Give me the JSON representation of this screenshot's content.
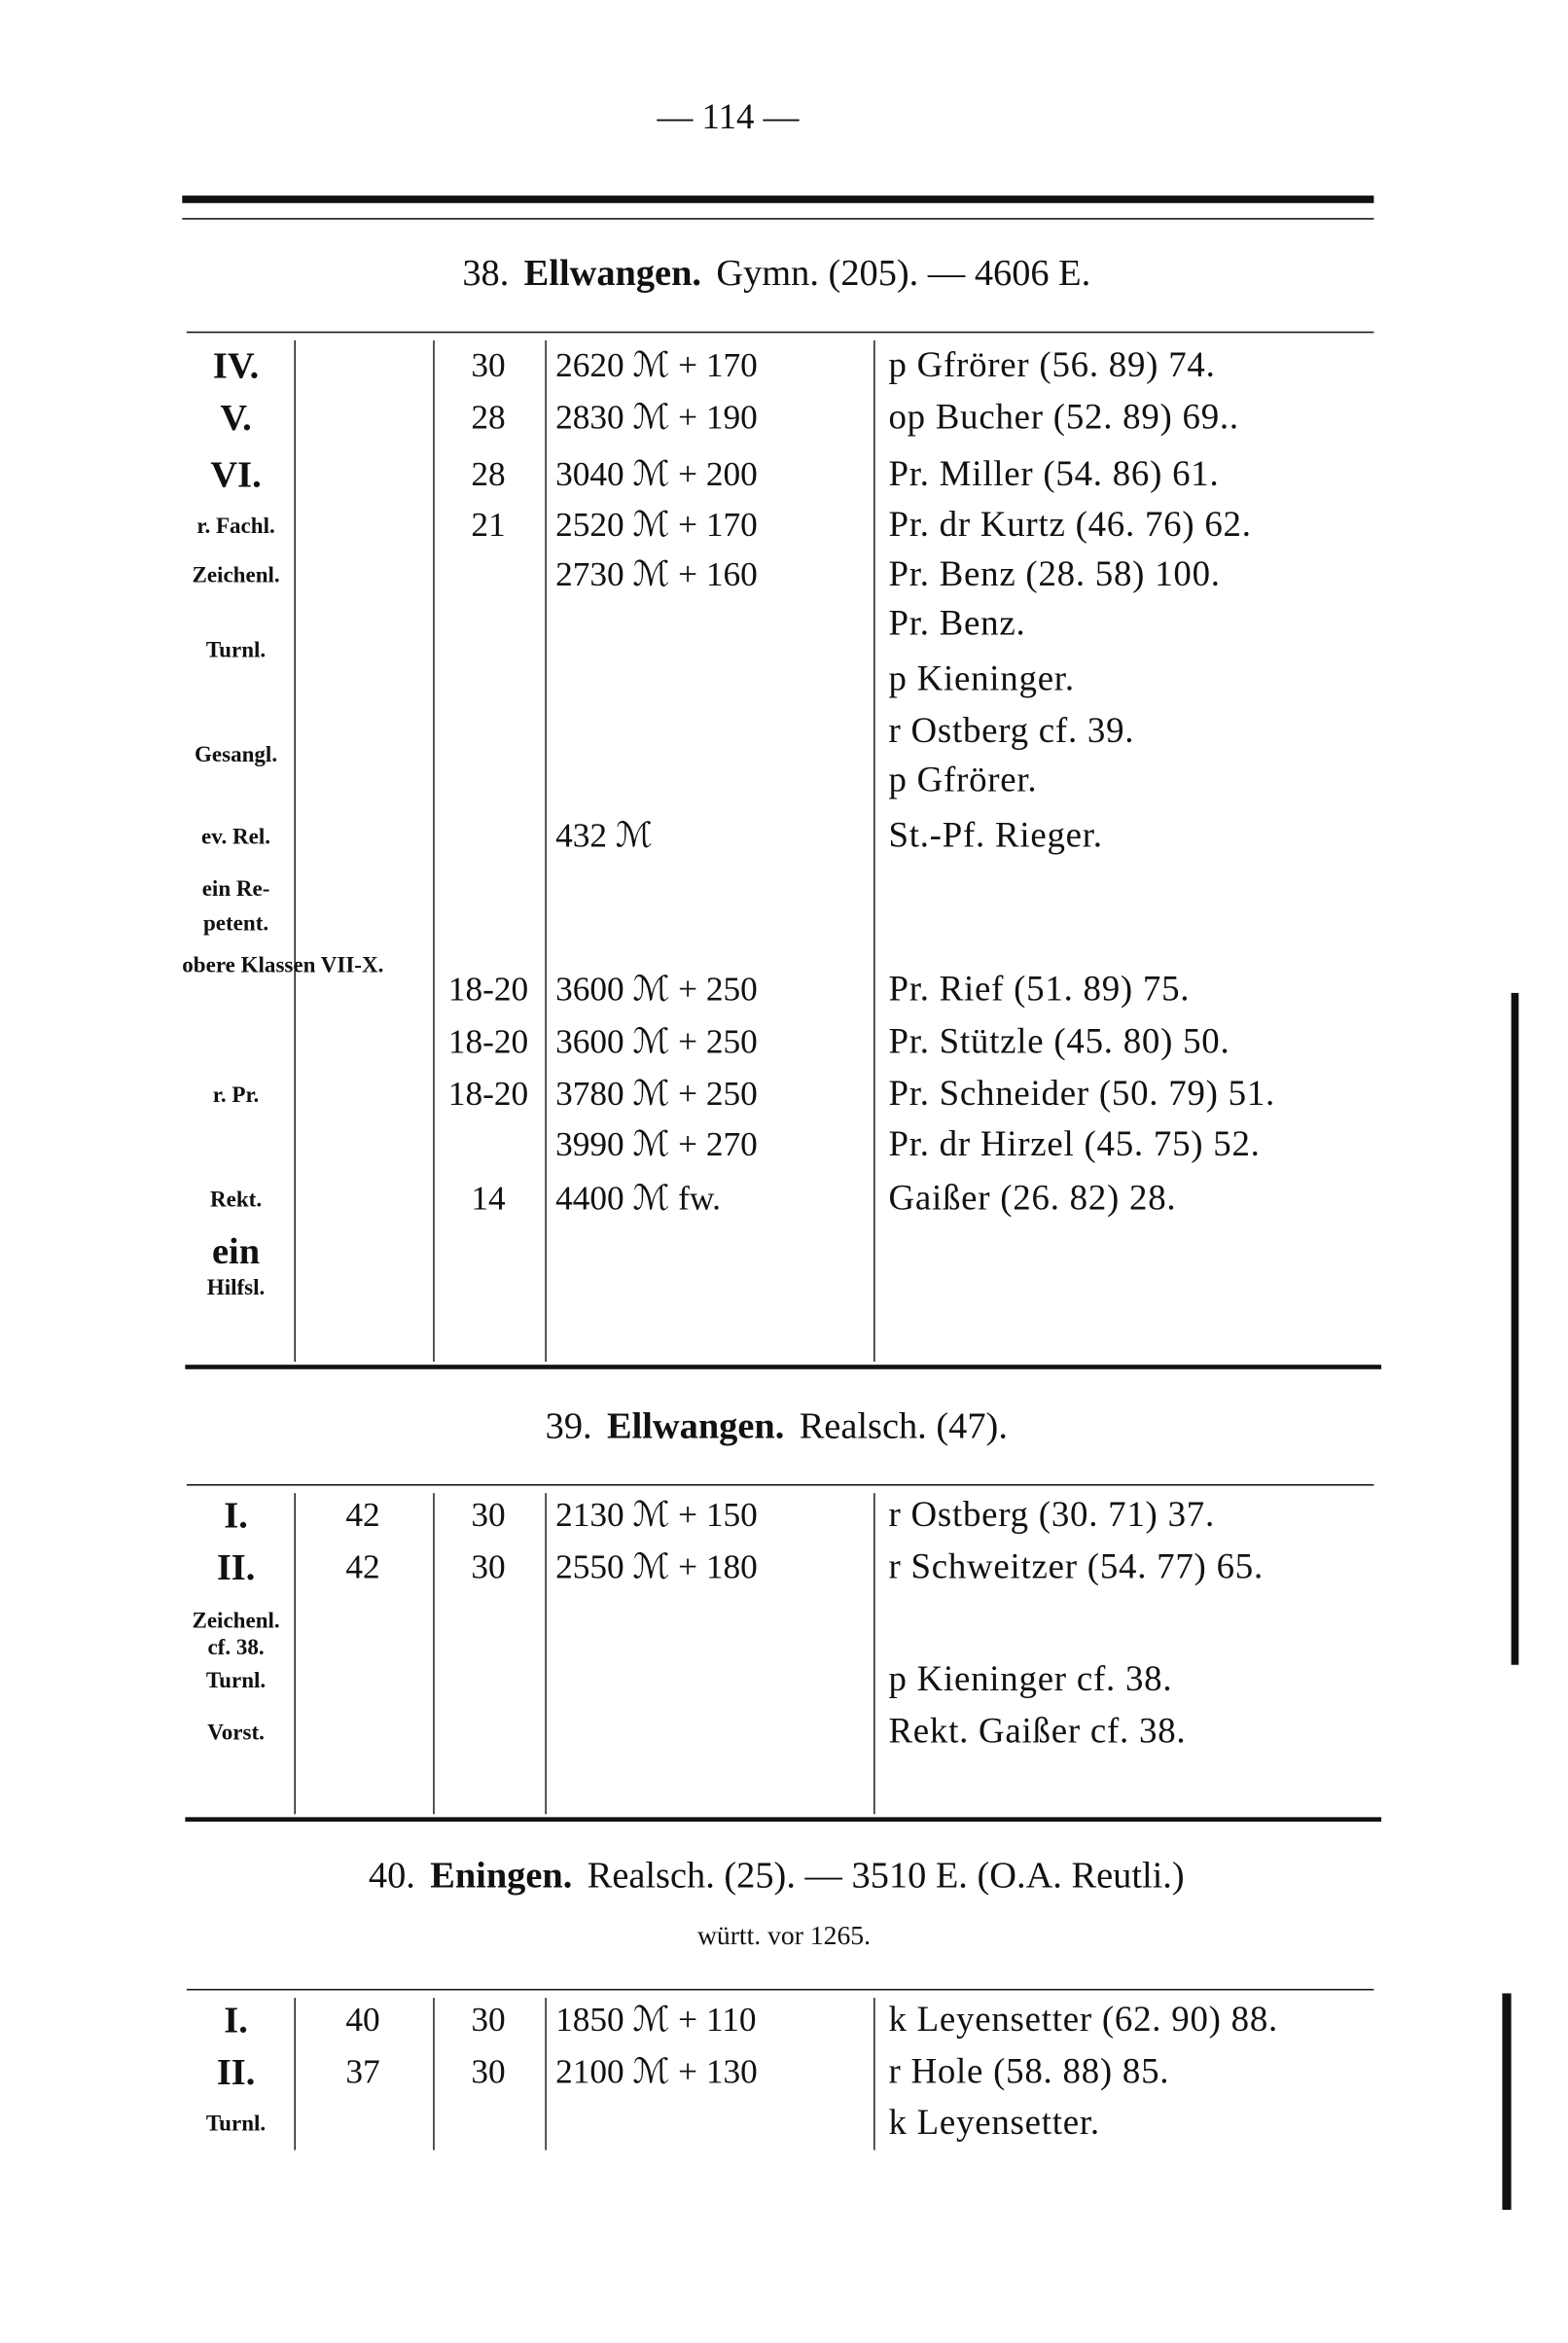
{
  "page_number": "— 114 —",
  "sections": [
    {
      "number": "38.",
      "town": "Ellwangen.",
      "rest": "Gymn. (205). — 4606 E.",
      "subtitle": "",
      "rows": [
        {
          "label": "IV.",
          "n1": "",
          "n2": "30",
          "salary": "2620 ℳ + 170",
          "name": "p Gfrörer (56. 89) 74."
        },
        {
          "label": "V.",
          "n1": "",
          "n2": "28",
          "salary": "2830 ℳ + 190",
          "name": "op Bucher (52. 89) 69.."
        },
        {
          "label": "VI.",
          "n1": "",
          "n2": "28",
          "salary": "3040 ℳ + 200",
          "name": "Pr. Miller (54. 86) 61."
        },
        {
          "label": "r. Fachl.",
          "n1": "",
          "n2": "21",
          "salary": "2520 ℳ + 170",
          "name": "Pr. dr Kurtz (46. 76) 62."
        },
        {
          "label": "Zeichenl.",
          "n1": "",
          "n2": "",
          "salary": "2730 ℳ + 160",
          "name": "Pr. Benz (28. 58) 100."
        },
        {
          "label": "",
          "n1": "",
          "n2": "",
          "salary": "",
          "name": "Pr. Benz."
        },
        {
          "label": "Turnl.",
          "n1": "",
          "n2": "",
          "salary": "",
          "name": ""
        },
        {
          "label": "",
          "n1": "",
          "n2": "",
          "salary": "",
          "name": "p Kieninger."
        },
        {
          "label": "",
          "n1": "",
          "n2": "",
          "salary": "",
          "name": "r Ostberg cf. 39."
        },
        {
          "label": "Gesangl.",
          "n1": "",
          "n2": "",
          "salary": "",
          "name": ""
        },
        {
          "label": "",
          "n1": "",
          "n2": "",
          "salary": "",
          "name": "p Gfrörer."
        },
        {
          "label": "ev. Rel.",
          "n1": "",
          "n2": "",
          "salary": "432 ℳ",
          "name": "St.-Pf. Rieger."
        },
        {
          "label": "ein Re-",
          "n1": "",
          "n2": "",
          "salary": "",
          "name": ""
        },
        {
          "label": "petent.",
          "n1": "",
          "n2": "",
          "salary": "",
          "name": ""
        },
        {
          "label": "obere Klassen VII-X.",
          "n1": "",
          "n2": "",
          "salary": "",
          "name": ""
        },
        {
          "label": "",
          "n1": "",
          "n2": "18-20",
          "salary": "3600 ℳ + 250",
          "name": "Pr. Rief (51. 89) 75."
        },
        {
          "label": "",
          "n1": "",
          "n2": "18-20",
          "salary": "3600 ℳ + 250",
          "name": "Pr. Stützle (45. 80) 50."
        },
        {
          "label": "r. Pr.",
          "n1": "",
          "n2": "18-20",
          "salary": "3780 ℳ + 250",
          "name": "Pr. Schneider (50. 79) 51."
        },
        {
          "label": "",
          "n1": "",
          "n2": "",
          "salary": "3990 ℳ + 270",
          "name": "Pr. dr Hirzel (45. 75) 52."
        },
        {
          "label": "Rekt.",
          "n1": "",
          "n2": "14",
          "salary": "4400 ℳ fw.",
          "name": "Gaißer (26. 82) 28."
        },
        {
          "label": "ein",
          "n1": "",
          "n2": "",
          "salary": "",
          "name": ""
        },
        {
          "label": "Hilfsl.",
          "n1": "",
          "n2": "",
          "salary": "",
          "name": ""
        }
      ]
    },
    {
      "number": "39.",
      "town": "Ellwangen.",
      "rest": "Realsch. (47).",
      "subtitle": "",
      "rows": [
        {
          "label": "I.",
          "n1": "42",
          "n2": "30",
          "salary": "2130 ℳ + 150",
          "name": "r Ostberg (30. 71) 37."
        },
        {
          "label": "II.",
          "n1": "42",
          "n2": "30",
          "salary": "2550 ℳ + 180",
          "name": "r Schweitzer (54. 77) 65."
        },
        {
          "label": "Zeichenl.",
          "n1": "",
          "n2": "",
          "salary": "",
          "name": ""
        },
        {
          "label": "cf. 38.",
          "n1": "",
          "n2": "",
          "salary": "",
          "name": ""
        },
        {
          "label": "Turnl.",
          "n1": "",
          "n2": "",
          "salary": "",
          "name": "p Kieninger cf. 38."
        },
        {
          "label": "Vorst.",
          "n1": "",
          "n2": "",
          "salary": "",
          "name": "Rekt. Gaißer cf. 38."
        }
      ]
    },
    {
      "number": "40.",
      "town": "Eningen.",
      "rest": "Realsch. (25). — 3510 E. (O.A. Reutli.)",
      "subtitle": "württ. vor 1265.",
      "rows": [
        {
          "label": "I.",
          "n1": "40",
          "n2": "30",
          "salary": "1850 ℳ + 110",
          "name": "k Leyensetter (62. 90) 88."
        },
        {
          "label": "II.",
          "n1": "37",
          "n2": "30",
          "salary": "2100 ℳ + 130",
          "name": "r Hole (58. 88) 85."
        },
        {
          "label": "Turnl.",
          "n1": "",
          "n2": "",
          "salary": "",
          "name": "k Leyensetter."
        }
      ]
    }
  ]
}
